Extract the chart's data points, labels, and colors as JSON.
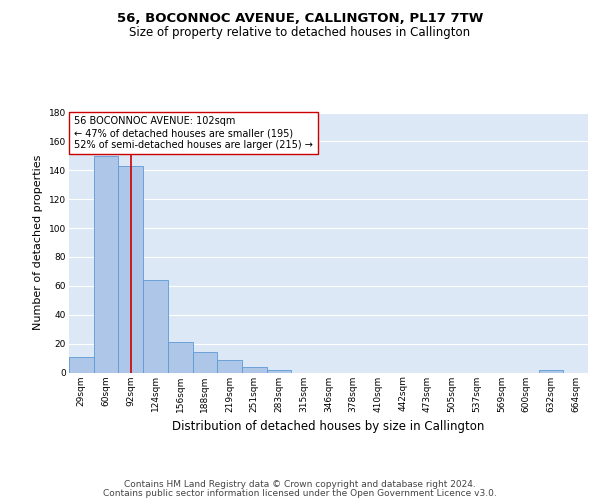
{
  "title": "56, BOCONNOC AVENUE, CALLINGTON, PL17 7TW",
  "subtitle": "Size of property relative to detached houses in Callington",
  "xlabel": "Distribution of detached houses by size in Callington",
  "ylabel": "Number of detached properties",
  "bar_labels": [
    "29sqm",
    "60sqm",
    "92sqm",
    "124sqm",
    "156sqm",
    "188sqm",
    "219sqm",
    "251sqm",
    "283sqm",
    "315sqm",
    "346sqm",
    "378sqm",
    "410sqm",
    "442sqm",
    "473sqm",
    "505sqm",
    "537sqm",
    "569sqm",
    "600sqm",
    "632sqm",
    "664sqm"
  ],
  "bar_values": [
    11,
    150,
    143,
    64,
    21,
    14,
    9,
    4,
    2,
    0,
    0,
    0,
    0,
    0,
    0,
    0,
    0,
    0,
    0,
    2,
    0
  ],
  "bar_color": "#aec6e8",
  "bar_edge_color": "#5b9bd5",
  "background_color": "#dce8f5",
  "grid_color": "#ffffff",
  "vline_x": 2.0,
  "vline_color": "#cc0000",
  "annotation_text": "56 BOCONNOC AVENUE: 102sqm\n← 47% of detached houses are smaller (195)\n52% of semi-detached houses are larger (215) →",
  "annotation_box_color": "#ffffff",
  "annotation_box_edge": "#cc0000",
  "ylim": [
    0,
    180
  ],
  "yticks": [
    0,
    20,
    40,
    60,
    80,
    100,
    120,
    140,
    160,
    180
  ],
  "footer_line1": "Contains HM Land Registry data © Crown copyright and database right 2024.",
  "footer_line2": "Contains public sector information licensed under the Open Government Licence v3.0.",
  "title_fontsize": 9.5,
  "subtitle_fontsize": 8.5,
  "ylabel_fontsize": 8,
  "xlabel_fontsize": 8.5,
  "tick_fontsize": 6.5,
  "annotation_fontsize": 7,
  "footer_fontsize": 6.5
}
